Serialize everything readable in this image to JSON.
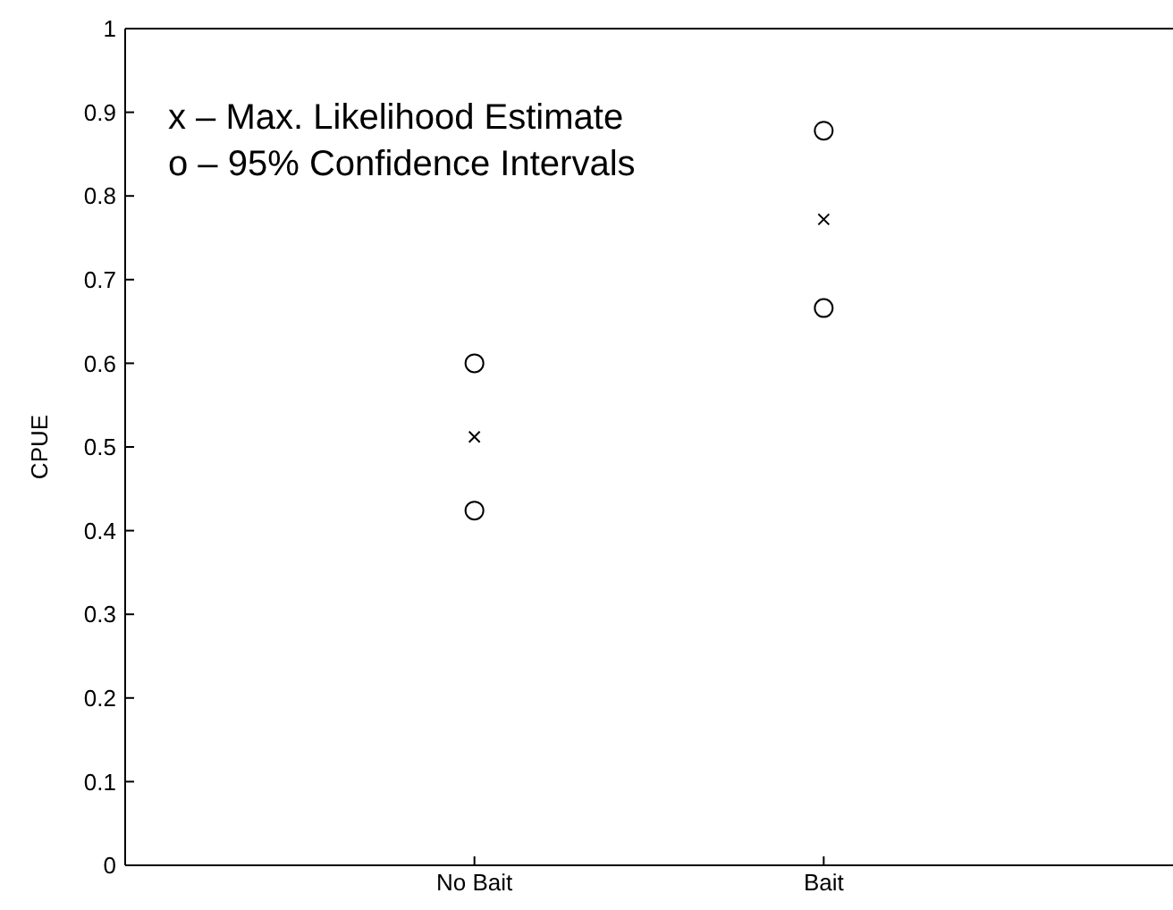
{
  "chart_data": {
    "type": "scatter",
    "ylabel": "CPUE",
    "categories": [
      "No Bait",
      "Bait"
    ],
    "series": [
      {
        "marker": "circle",
        "color": "#000000",
        "values": [
          0.6,
          0.878
        ]
      },
      {
        "marker": "cross",
        "color": "#000000",
        "values": [
          0.512,
          0.772
        ]
      },
      {
        "marker": "circle",
        "color": "#000000",
        "values": [
          0.424,
          0.666
        ]
      }
    ],
    "ylim": [
      0,
      1
    ],
    "yticks": [
      0,
      0.1,
      0.2,
      0.3,
      0.4,
      0.5,
      0.6,
      0.7,
      0.8,
      0.9,
      1
    ],
    "grid": false,
    "annotations": [
      "x – Max. Likelihood Estimate",
      "o – 95% Confidence Intervals"
    ]
  }
}
